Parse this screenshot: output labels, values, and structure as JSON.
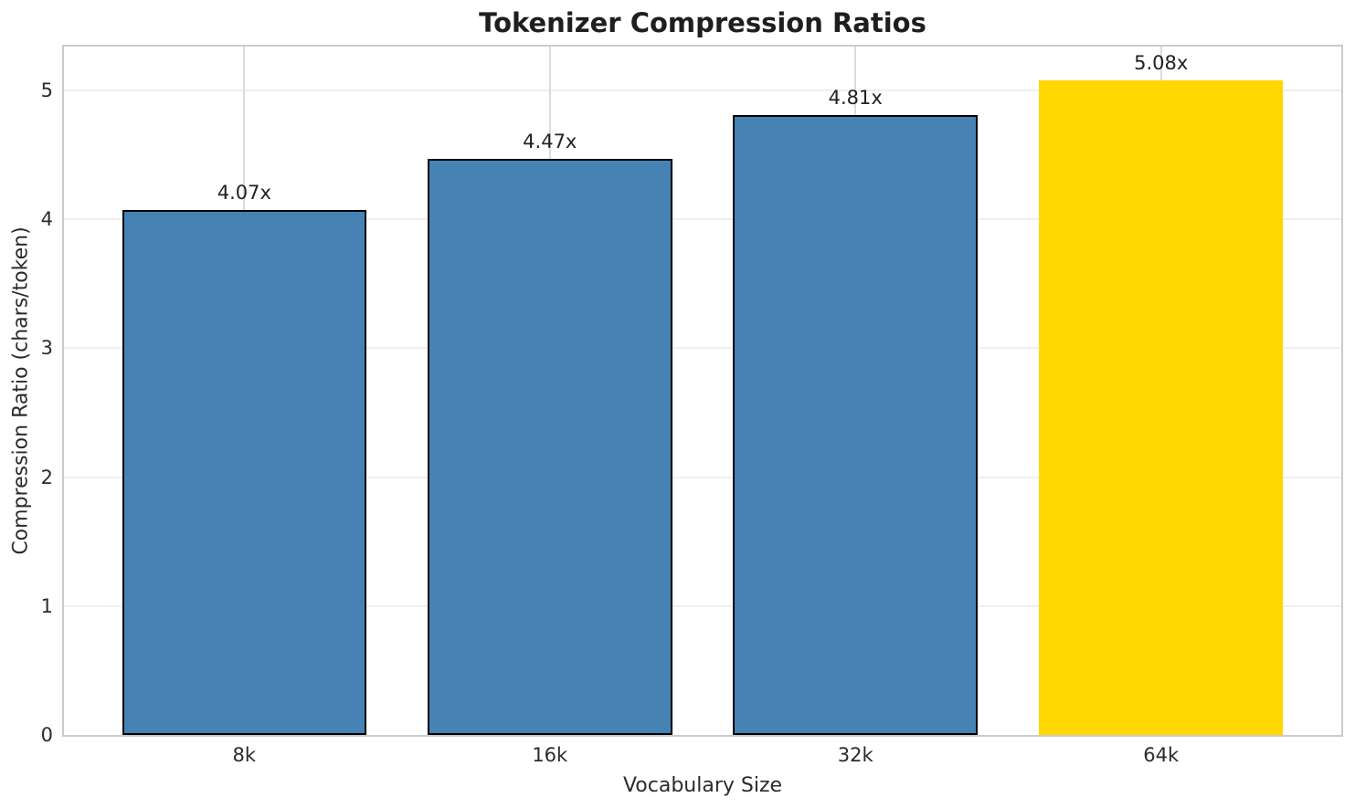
{
  "chart_data": {
    "type": "bar",
    "title": "Tokenizer Compression Ratios",
    "xlabel": "Vocabulary Size",
    "ylabel": "Compression Ratio (chars/token)",
    "categories": [
      "8k",
      "16k",
      "32k",
      "64k"
    ],
    "values": [
      4.07,
      4.47,
      4.81,
      5.08
    ],
    "bar_labels": [
      "4.07x",
      "4.47x",
      "4.81x",
      "5.08x"
    ],
    "bar_colors": [
      "#4682B4",
      "#4682B4",
      "#4682B4",
      "#FFD700"
    ],
    "bar_edge_colors": [
      "#000000",
      "#000000",
      "#000000",
      "none"
    ],
    "highlight_color": "#FFD700",
    "base_color": "#4682B4",
    "yticks": [
      0,
      1,
      2,
      3,
      4,
      5
    ],
    "ylim": [
      0,
      5.34
    ],
    "xlim": [
      -0.59,
      3.59
    ],
    "bar_width_units": 0.8,
    "grid": "on",
    "legend": "none"
  }
}
